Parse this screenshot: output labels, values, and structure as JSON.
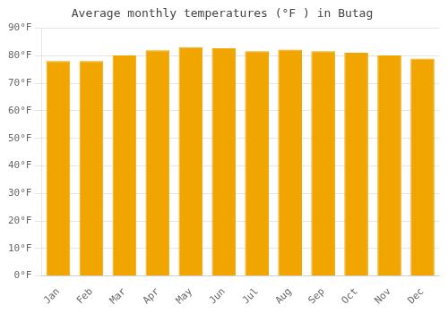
{
  "chart_data": {
    "type": "bar",
    "title": "Average monthly temperatures (°F ) in Butag",
    "categories": [
      "Jan",
      "Feb",
      "Mar",
      "Apr",
      "May",
      "Jun",
      "Jul",
      "Aug",
      "Sep",
      "Oct",
      "Nov",
      "Dec"
    ],
    "values": [
      78.1,
      78.1,
      80.1,
      82.0,
      83.1,
      82.7,
      81.7,
      82.2,
      81.7,
      81.1,
      80.1,
      79.0
    ],
    "color": "#F0A500",
    "ylim": [
      0,
      90
    ],
    "yticks": [
      {
        "value": 0,
        "label": "0°F"
      },
      {
        "value": 10,
        "label": "10°F"
      },
      {
        "value": 20,
        "label": "20°F"
      },
      {
        "value": 30,
        "label": "30°F"
      },
      {
        "value": 40,
        "label": "40°F"
      },
      {
        "value": 50,
        "label": "50°F"
      },
      {
        "value": 60,
        "label": "60°F"
      },
      {
        "value": 70,
        "label": "70°F"
      },
      {
        "value": 80,
        "label": "80°F"
      },
      {
        "value": 90,
        "label": "90°F"
      }
    ],
    "grid": true
  }
}
